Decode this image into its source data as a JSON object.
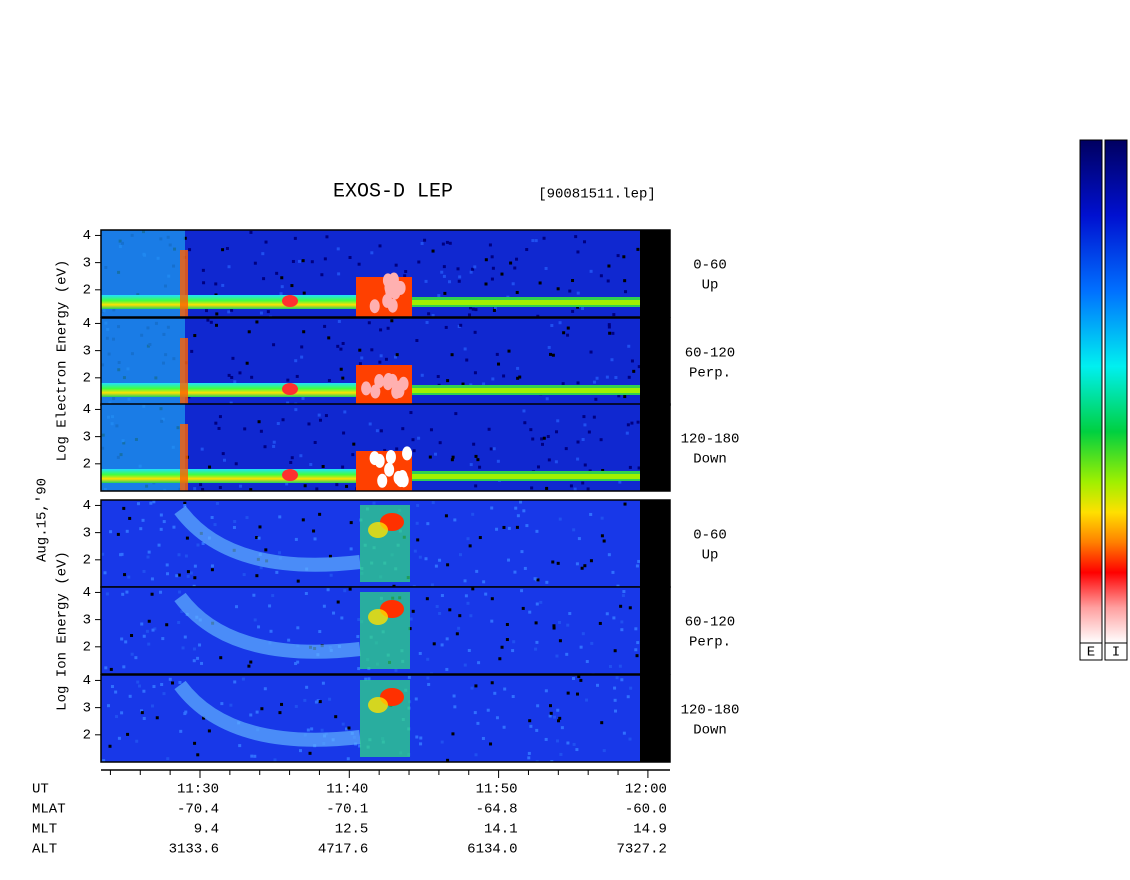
{
  "chart_data": {
    "type": "spectrogram",
    "title": "EXOS-D LEP",
    "file": "[90081511.lep]",
    "date": "Aug.15,'90",
    "ylim": [
      1,
      4.2
    ],
    "yticks": [
      2,
      3,
      4
    ],
    "x": [
      "11:30",
      "11:40",
      "11:50",
      "12:00"
    ],
    "groups": [
      {
        "ylabel": "Log  Electron  Energy (eV)",
        "panels": [
          {
            "label": [
              "0-60",
              "Up"
            ]
          },
          {
            "label": [
              "60-120",
              "Perp."
            ]
          },
          {
            "label": [
              "120-180",
              "Down"
            ]
          }
        ]
      },
      {
        "ylabel": "Log  Ion  Energy (eV)",
        "panels": [
          {
            "label": [
              "0-60",
              "Up"
            ]
          },
          {
            "label": [
              "60-120",
              "Perp."
            ]
          },
          {
            "label": [
              "120-180",
              "Down"
            ]
          }
        ]
      }
    ],
    "orbit": {
      "labels": [
        "UT",
        "MLAT",
        "MLT",
        "ALT"
      ],
      "rows": [
        [
          "-70.4",
          "-70.1",
          "-64.8",
          "-60.0"
        ],
        [
          "9.4",
          "12.5",
          "14.1",
          "14.9"
        ],
        [
          "3133.6",
          "4717.6",
          "6134.0",
          "7327.2"
        ]
      ]
    },
    "colorbars": [
      "E",
      "I"
    ]
  }
}
